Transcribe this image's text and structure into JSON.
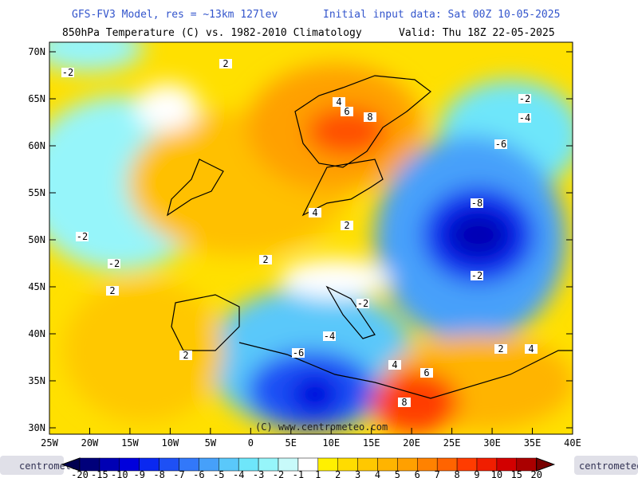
{
  "header": {
    "model": "GFS-FV3 Model, res = ~13km 127lev",
    "init": "Initial input data: Sat 00Z 10-05-2025",
    "field": "850hPa Temperature (C) vs. 1982-2010 Climatology",
    "valid": "Valid: Thu 18Z 22-05-2025"
  },
  "map": {
    "lat_ticks": [
      {
        "value": 70,
        "label": "70N"
      },
      {
        "value": 65,
        "label": "65N"
      },
      {
        "value": 60,
        "label": "60N"
      },
      {
        "value": 55,
        "label": "55N"
      },
      {
        "value": 50,
        "label": "50N"
      },
      {
        "value": 45,
        "label": "45N"
      },
      {
        "value": 40,
        "label": "40N"
      },
      {
        "value": 35,
        "label": "35N"
      },
      {
        "value": 30,
        "label": "30N"
      }
    ],
    "lon_ticks": [
      {
        "value": -25,
        "label": "25W"
      },
      {
        "value": -20,
        "label": "20W"
      },
      {
        "value": -15,
        "label": "15W"
      },
      {
        "value": -10,
        "label": "10W"
      },
      {
        "value": -5,
        "label": "5W"
      },
      {
        "value": 0,
        "label": "0"
      },
      {
        "value": 5,
        "label": "5E"
      },
      {
        "value": 10,
        "label": "10E"
      },
      {
        "value": 15,
        "label": "15E"
      },
      {
        "value": 20,
        "label": "20E"
      },
      {
        "value": 25,
        "label": "25E"
      },
      {
        "value": 30,
        "label": "30E"
      },
      {
        "value": 35,
        "label": "35E"
      },
      {
        "value": 40,
        "label": "40E"
      }
    ],
    "contour_labels": [
      "-2",
      "2",
      "4",
      "6",
      "8",
      "-2",
      "-2",
      "2",
      "4",
      "2",
      "2",
      "-6",
      "-8",
      "-2",
      "-4",
      "-6",
      "-4",
      "-2",
      "4",
      "6",
      "8",
      "2",
      "4",
      "2",
      "-2"
    ],
    "copyright": "(C) www.centrometeo.com"
  },
  "colorbar": {
    "levels": [
      -20,
      -15,
      -10,
      -9,
      -8,
      -7,
      -6,
      -5,
      -4,
      -3,
      -2,
      -1,
      1,
      2,
      3,
      4,
      5,
      6,
      7,
      8,
      9,
      10,
      15,
      20
    ],
    "colors": [
      "#000050",
      "#00007a",
      "#0000b4",
      "#0000dc",
      "#0a28f0",
      "#1e50f5",
      "#3278fa",
      "#46a0fa",
      "#5ac8fa",
      "#6ee6fa",
      "#96f5fa",
      "#c8fafa",
      "#ffffff",
      "#fff000",
      "#ffdc00",
      "#ffc800",
      "#ffb400",
      "#ffa000",
      "#ff8200",
      "#ff6400",
      "#ff3c00",
      "#f01e00",
      "#d20000",
      "#aa0000",
      "#780000"
    ]
  },
  "logo": "centrometeo"
}
